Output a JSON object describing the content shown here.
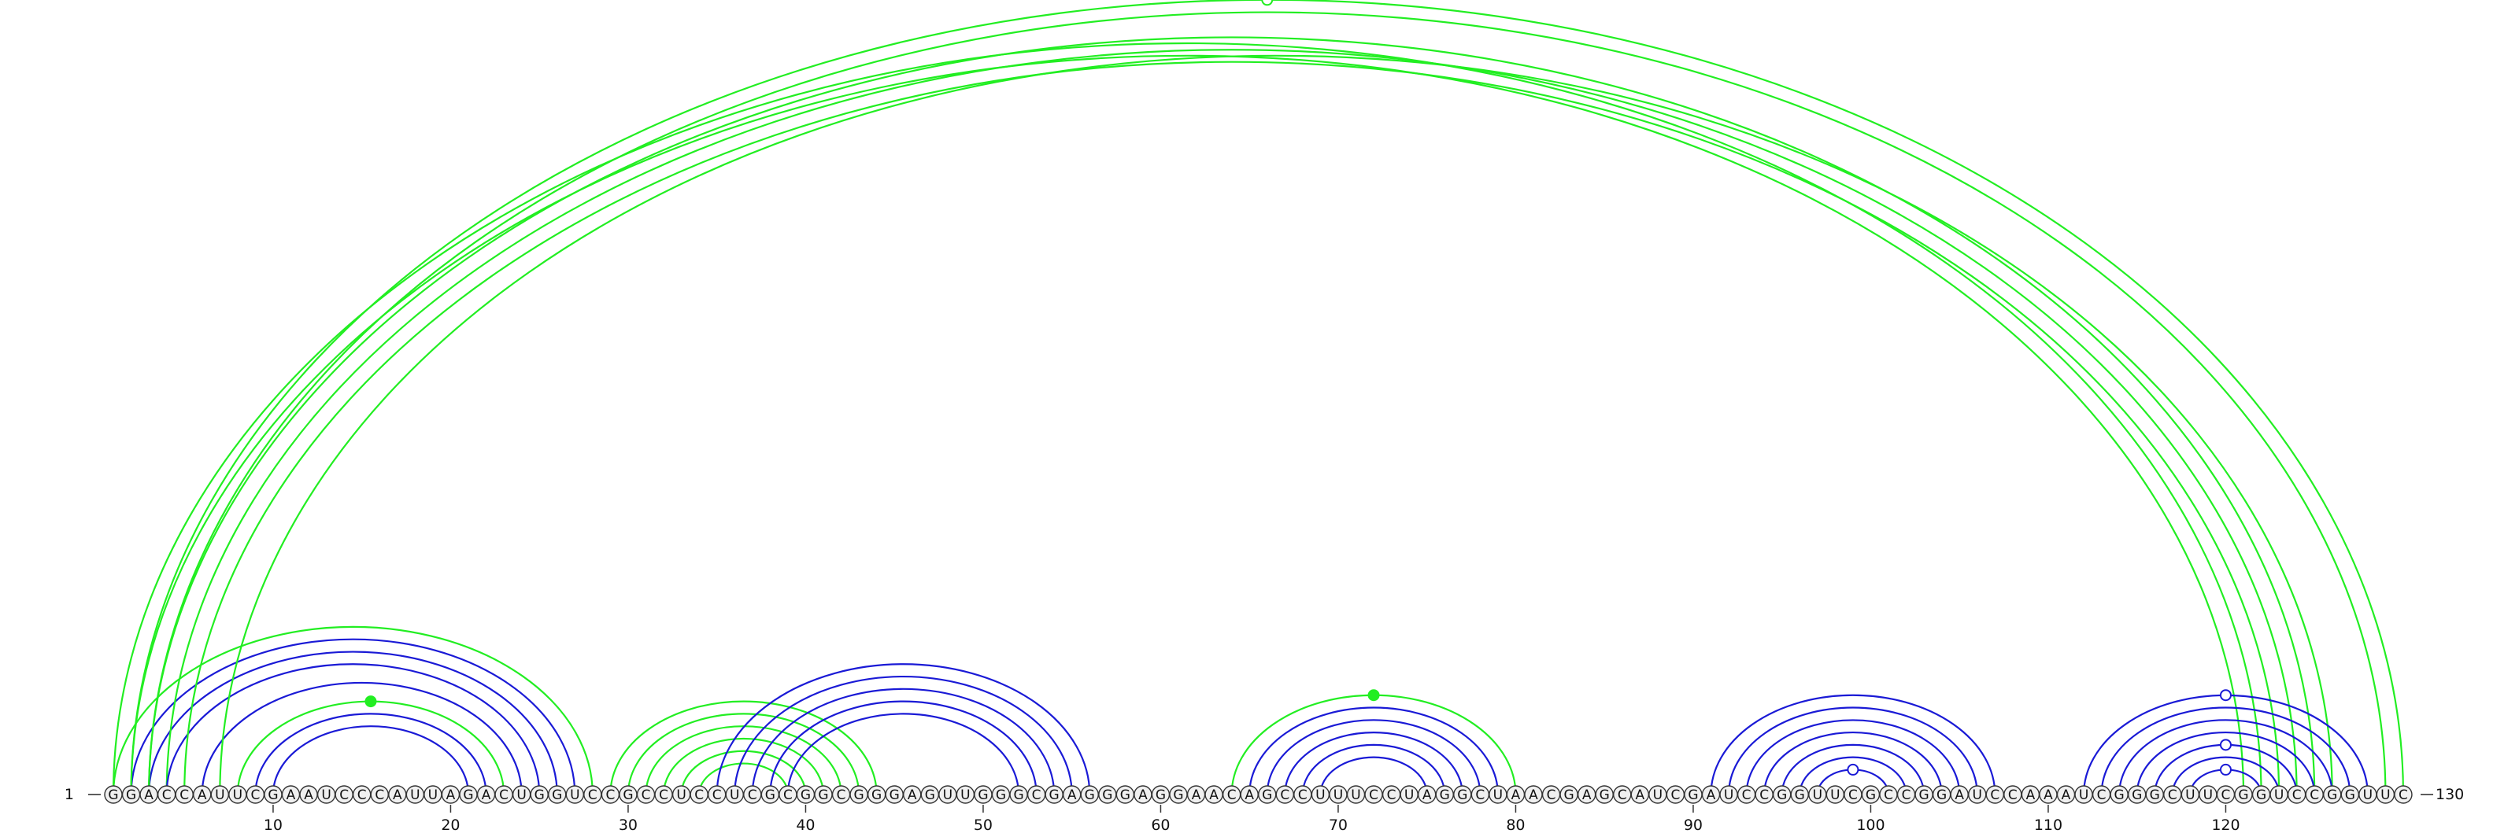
{
  "sequence": "GGACCAUUCGAAUCCCAUUAGACUGGUCCGCCUCCUCGCGGCGGGAGUUGGGCGAGGGAGGAACAGCCUUUCCUAGGCUAACGAGCAUCGAUCCGGUUCGCCGGAUCCAAAUCGGGCUUCGGUCCGGUUC",
  "start_label": "1",
  "end_label": "130",
  "tick_labels": [
    "10",
    "20",
    "30",
    "40",
    "50",
    "60",
    "70",
    "80",
    "90",
    "100",
    "110",
    "120"
  ],
  "colors": {
    "blue": "#1a1ad6",
    "green": "#22ee22"
  },
  "arcs": [
    {
      "i": 1,
      "j": 28,
      "color": "green"
    },
    {
      "i": 1,
      "j": 122,
      "color": "green"
    },
    {
      "i": 2,
      "j": 121,
      "color": "green"
    },
    {
      "i": 2,
      "j": 27,
      "color": "blue"
    },
    {
      "i": 3,
      "j": 26,
      "color": "blue"
    },
    {
      "i": 3,
      "j": 125,
      "color": "green"
    },
    {
      "i": 4,
      "j": 124,
      "color": "green"
    },
    {
      "i": 4,
      "j": 25,
      "color": "blue"
    },
    {
      "i": 5,
      "j": 123,
      "color": "green"
    },
    {
      "i": 6,
      "j": 24,
      "color": "blue"
    },
    {
      "i": 7,
      "j": 126,
      "color": "green"
    },
    {
      "i": 8,
      "j": 23,
      "color": "green"
    },
    {
      "i": 9,
      "j": 22,
      "color": "blue"
    },
    {
      "i": 10,
      "j": 21,
      "color": "blue"
    },
    {
      "i": 2,
      "j": 130,
      "color": "green"
    },
    {
      "i": 3,
      "j": 129,
      "color": "green"
    },
    {
      "i": 29,
      "j": 44,
      "color": "green"
    },
    {
      "i": 30,
      "j": 43,
      "color": "green"
    },
    {
      "i": 31,
      "j": 42,
      "color": "green"
    },
    {
      "i": 32,
      "j": 41,
      "color": "green"
    },
    {
      "i": 33,
      "j": 40,
      "color": "green"
    },
    {
      "i": 34,
      "j": 39,
      "color": "green"
    },
    {
      "i": 35,
      "j": 56,
      "color": "blue"
    },
    {
      "i": 36,
      "j": 55,
      "color": "blue"
    },
    {
      "i": 37,
      "j": 54,
      "color": "blue"
    },
    {
      "i": 38,
      "j": 53,
      "color": "blue"
    },
    {
      "i": 39,
      "j": 52,
      "color": "blue"
    },
    {
      "i": 64,
      "j": 80,
      "color": "green"
    },
    {
      "i": 65,
      "j": 79,
      "color": "blue"
    },
    {
      "i": 66,
      "j": 78,
      "color": "blue"
    },
    {
      "i": 67,
      "j": 77,
      "color": "blue"
    },
    {
      "i": 68,
      "j": 76,
      "color": "blue"
    },
    {
      "i": 69,
      "j": 75,
      "color": "blue"
    },
    {
      "i": 91,
      "j": 107,
      "color": "blue"
    },
    {
      "i": 92,
      "j": 106,
      "color": "blue"
    },
    {
      "i": 93,
      "j": 105,
      "color": "blue"
    },
    {
      "i": 94,
      "j": 104,
      "color": "blue"
    },
    {
      "i": 95,
      "j": 103,
      "color": "blue"
    },
    {
      "i": 96,
      "j": 102,
      "color": "blue"
    },
    {
      "i": 97,
      "j": 101,
      "color": "blue"
    },
    {
      "i": 112,
      "j": 128,
      "color": "blue"
    },
    {
      "i": 113,
      "j": 127,
      "color": "blue"
    },
    {
      "i": 114,
      "j": 126,
      "color": "blue"
    },
    {
      "i": 115,
      "j": 125,
      "color": "blue"
    },
    {
      "i": 116,
      "j": 124,
      "color": "blue"
    },
    {
      "i": 117,
      "j": 123,
      "color": "blue"
    },
    {
      "i": 118,
      "j": 122,
      "color": "blue"
    }
  ],
  "markers": [
    {
      "pos": 15,
      "arc_i": 8,
      "arc_j": 23,
      "fill": "filled",
      "color": "green"
    },
    {
      "pos": 66,
      "arc_i": 2,
      "arc_j": 130,
      "fill": "open",
      "color": "green"
    },
    {
      "pos": 72,
      "arc_i": 64,
      "arc_j": 80,
      "fill": "filled",
      "color": "green"
    },
    {
      "pos": 99,
      "arc_i": 97,
      "arc_j": 101,
      "fill": "open",
      "color": "blue"
    },
    {
      "pos": 120,
      "arc_i": 112,
      "arc_j": 128,
      "fill": "open",
      "color": "blue"
    },
    {
      "pos": 120,
      "arc_i": 116,
      "arc_j": 124,
      "fill": "open",
      "color": "blue"
    },
    {
      "pos": 120,
      "arc_i": 118,
      "arc_j": 122,
      "fill": "open",
      "color": "blue"
    }
  ]
}
